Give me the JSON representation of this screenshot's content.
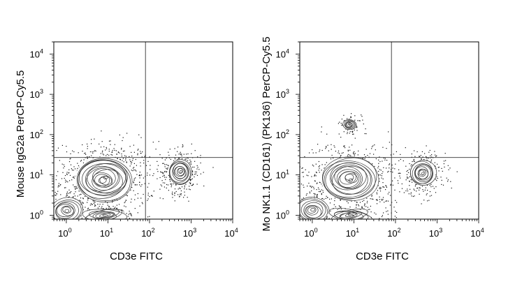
{
  "chart_data": [
    {
      "type": "scatter",
      "subtype": "flow-cytometry contour plot with outlier dots",
      "title": "",
      "xlabel": "CD3e FITC",
      "ylabel": "Mouse IgG2a PerCP-Cy5.5",
      "x_scale": "log",
      "y_scale": "log",
      "xlim": [
        0.5,
        10000
      ],
      "ylim": [
        0.8,
        20000
      ],
      "xticks": [
        {
          "base": "10",
          "exp": "0"
        },
        {
          "base": "10",
          "exp": "1"
        },
        {
          "base": "10",
          "exp": "2"
        },
        {
          "base": "10",
          "exp": "3"
        },
        {
          "base": "10",
          "exp": "4"
        }
      ],
      "yticks": [
        {
          "base": "10",
          "exp": "0"
        },
        {
          "base": "10",
          "exp": "1"
        },
        {
          "base": "10",
          "exp": "2"
        },
        {
          "base": "10",
          "exp": "3"
        },
        {
          "base": "10",
          "exp": "4"
        }
      ],
      "gates": {
        "x": 80,
        "y": 27
      },
      "populations": [
        {
          "x": 8,
          "y": 8,
          "spread_x": 0.45,
          "spread_y": 0.35,
          "weight": 0.55
        },
        {
          "x": 1.0,
          "y": 1.3,
          "spread_x": 0.25,
          "spread_y": 0.2,
          "weight": 0.12
        },
        {
          "x": 8,
          "y": 1.0,
          "spread_x": 0.35,
          "spread_y": 0.1,
          "weight": 0.1
        },
        {
          "x": 550,
          "y": 12,
          "spread_x": 0.18,
          "spread_y": 0.2,
          "weight": 0.23
        }
      ]
    },
    {
      "type": "scatter",
      "subtype": "flow-cytometry contour plot with outlier dots",
      "title": "",
      "xlabel": "CD3e FITC",
      "ylabel": "Mo NK1.1 (CD161) (PK136) PerCP-Cy5.5",
      "x_scale": "log",
      "y_scale": "log",
      "xlim": [
        0.5,
        10000
      ],
      "ylim": [
        0.8,
        20000
      ],
      "xticks": [
        {
          "base": "10",
          "exp": "0"
        },
        {
          "base": "10",
          "exp": "1"
        },
        {
          "base": "10",
          "exp": "2"
        },
        {
          "base": "10",
          "exp": "3"
        },
        {
          "base": "10",
          "exp": "4"
        }
      ],
      "yticks": [
        {
          "base": "10",
          "exp": "0"
        },
        {
          "base": "10",
          "exp": "1"
        },
        {
          "base": "10",
          "exp": "2"
        },
        {
          "base": "10",
          "exp": "3"
        },
        {
          "base": "10",
          "exp": "4"
        }
      ],
      "gates": {
        "x": 80,
        "y": 27
      },
      "populations": [
        {
          "x": 8,
          "y": 8,
          "spread_x": 0.45,
          "spread_y": 0.35,
          "weight": 0.5
        },
        {
          "x": 1.0,
          "y": 1.3,
          "spread_x": 0.25,
          "spread_y": 0.2,
          "weight": 0.1
        },
        {
          "x": 8,
          "y": 1.0,
          "spread_x": 0.35,
          "spread_y": 0.1,
          "weight": 0.1
        },
        {
          "x": 450,
          "y": 11,
          "spread_x": 0.2,
          "spread_y": 0.2,
          "weight": 0.22
        },
        {
          "x": 8,
          "y": 180,
          "spread_x": 0.1,
          "spread_y": 0.08,
          "weight": 0.06
        }
      ]
    }
  ]
}
